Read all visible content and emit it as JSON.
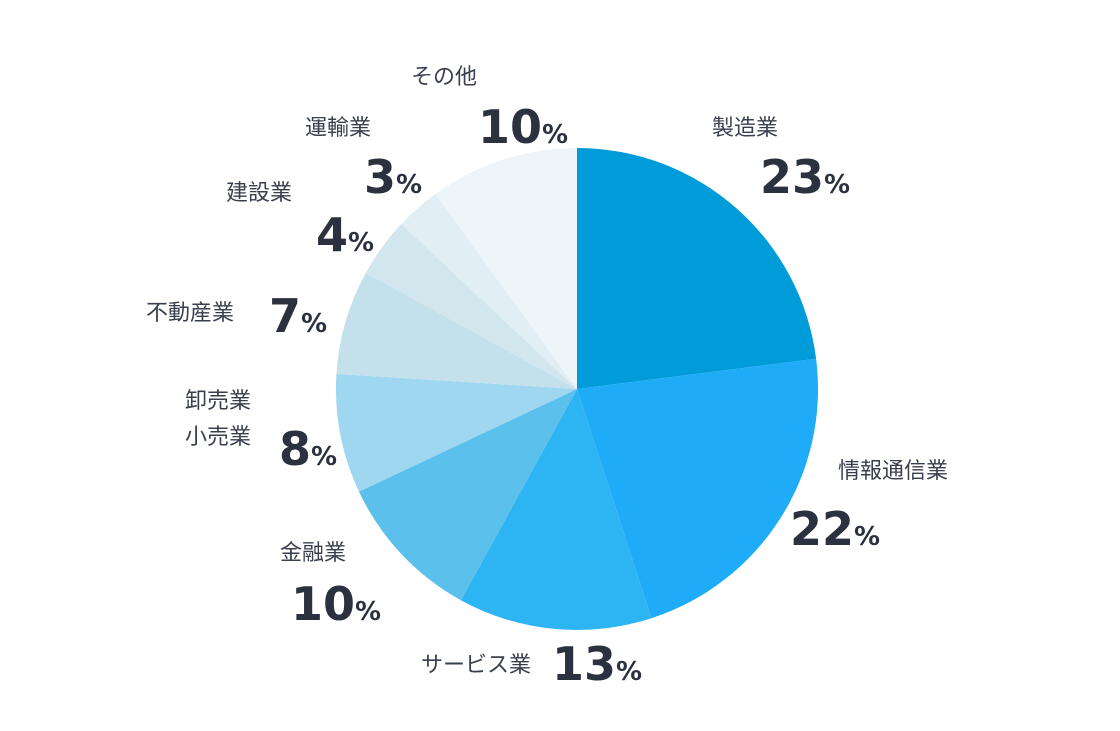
{
  "chart_data": {
    "type": "pie",
    "start_angle_deg": 0,
    "direction": "clockwise",
    "unit": "%",
    "slices": [
      {
        "label": [
          "製造業"
        ],
        "value": 23,
        "color": "#009bd9"
      },
      {
        "label": [
          "情報通信業"
        ],
        "value": 22,
        "color": "#1eabf8"
      },
      {
        "label": [
          "サービス業"
        ],
        "value": 13,
        "color": "#2db4f2"
      },
      {
        "label": [
          "金融業"
        ],
        "value": 10,
        "color": "#5bc0ec"
      },
      {
        "label": [
          "卸売業",
          "小売業"
        ],
        "value": 8,
        "color": "#9ed7ef"
      },
      {
        "label": [
          "不動産業"
        ],
        "value": 7,
        "color": "#c4e0ea"
      },
      {
        "label": [
          "建設業"
        ],
        "value": 4,
        "color": "#d2e6ee"
      },
      {
        "label": [
          "運輸業"
        ],
        "value": 3,
        "color": "#e1eef4"
      },
      {
        "label": [
          "その他"
        ],
        "value": 10,
        "color": "#edf5f9"
      }
    ]
  }
}
